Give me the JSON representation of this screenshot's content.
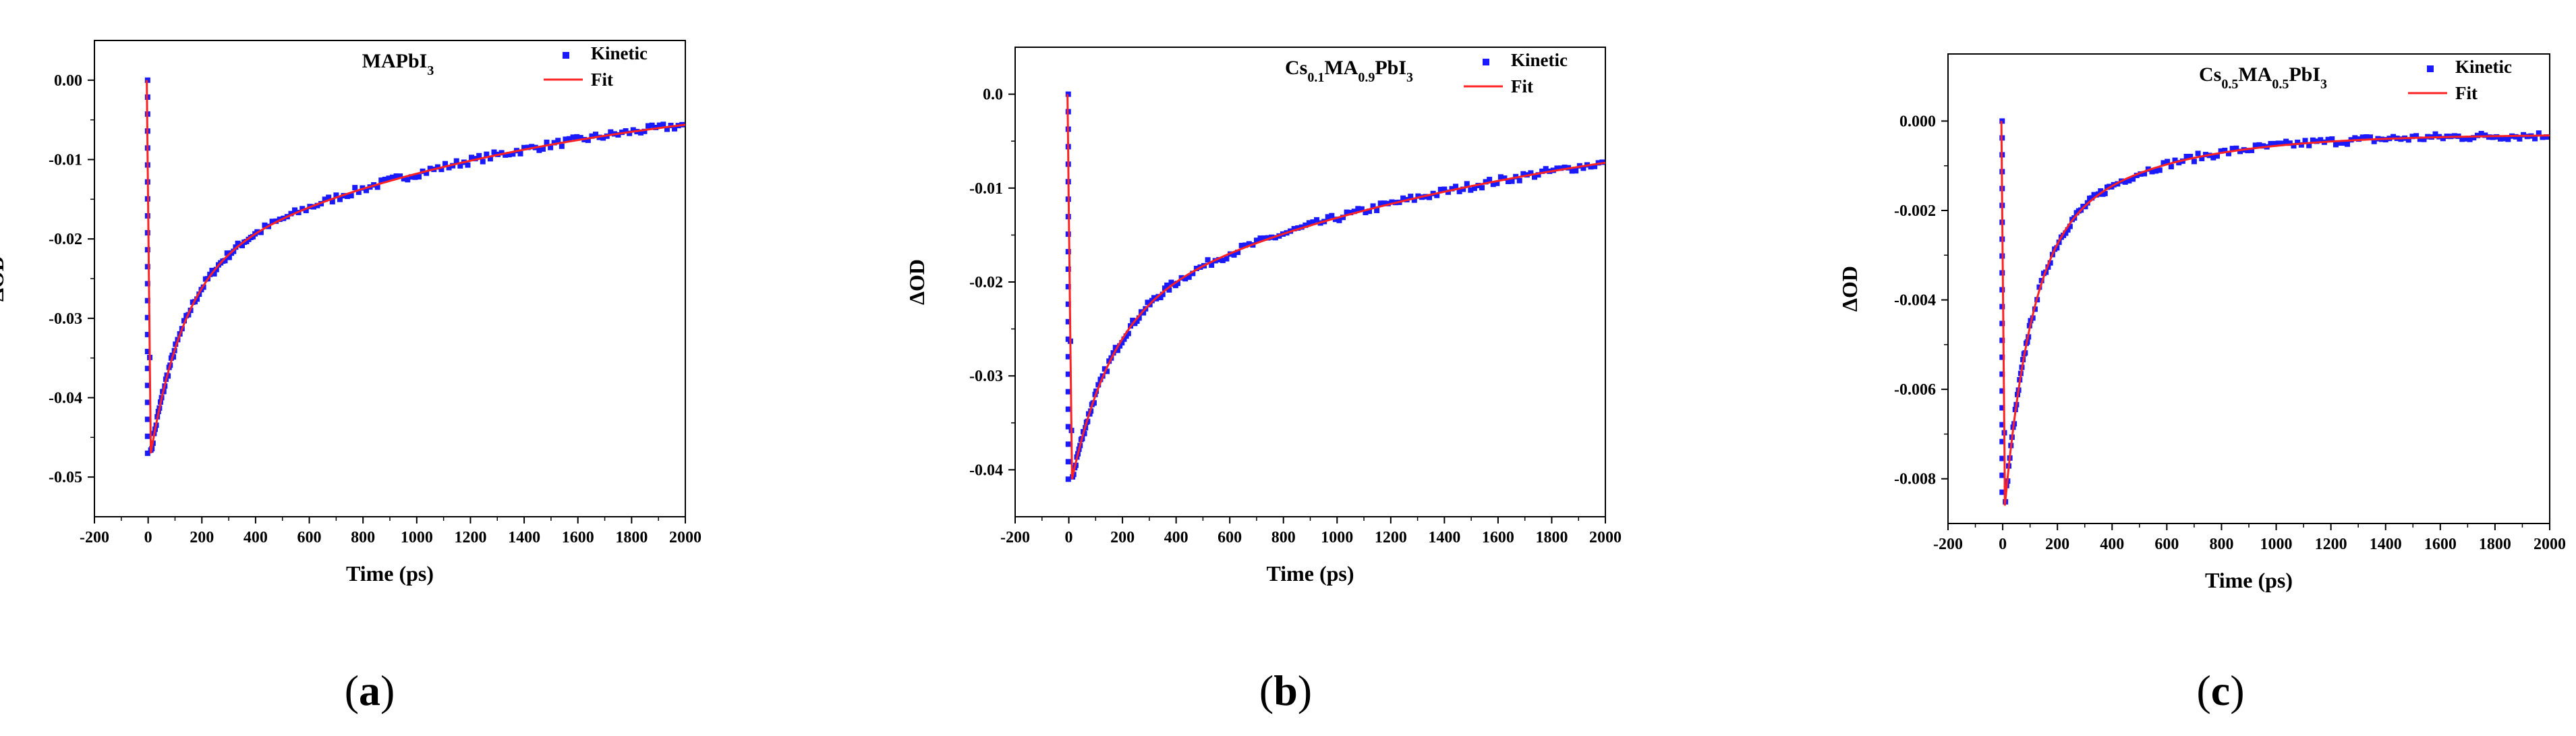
{
  "figure": {
    "caption_open": "(",
    "caption_close": ")"
  },
  "colors": {
    "kinetic": "#1a1aff",
    "fit": "#ff2222",
    "axis": "#000000"
  },
  "chart_data": [
    {
      "type": "scatter",
      "panel_label": "a",
      "title_parts": [
        [
          "MAPbI",
          "n"
        ],
        [
          "3",
          "sub"
        ]
      ],
      "xlabel": "Time (ps)",
      "ylabel": "ΔOD",
      "xlim": [
        -200,
        2000
      ],
      "ylim": [
        -0.055,
        0.005
      ],
      "xticks": [
        -200,
        0,
        200,
        400,
        600,
        800,
        1000,
        1200,
        1400,
        1600,
        1800,
        2000
      ],
      "yticks": [
        0.0,
        -0.01,
        -0.02,
        -0.03,
        -0.04,
        -0.05
      ],
      "ytick_labels": [
        "0.00",
        "-0.01",
        "-0.02",
        "-0.03",
        "-0.04",
        "-0.05"
      ],
      "legend": {
        "kinetic": "Kinetic",
        "fit": "Fit",
        "position": "top-right"
      },
      "model": {
        "t_peak": 10,
        "amplitude_min": -0.047,
        "a1": 0.0225,
        "tau1": 125,
        "a2": 0.0245,
        "tau2": 1350
      },
      "series": [
        {
          "name": "Kinetic",
          "kind": "markers",
          "description": "measured kinetic trace, rises from 0.00 to a minimum of about -0.047 near t = 10 ps then recovers to about -0.006 at 2000 ps"
        },
        {
          "name": "Fit",
          "kind": "line"
        }
      ]
    },
    {
      "type": "scatter",
      "panel_label": "b",
      "title_parts": [
        [
          "Cs",
          "n"
        ],
        [
          "0.1",
          "sub"
        ],
        [
          "MA",
          "n"
        ],
        [
          "0.9",
          "sub"
        ],
        [
          "PbI",
          "n"
        ],
        [
          "3",
          "sub"
        ]
      ],
      "xlabel": "Time (ps)",
      "ylabel": "ΔOD",
      "xlim": [
        -200,
        2000
      ],
      "ylim": [
        -0.045,
        0.005
      ],
      "xticks": [
        -200,
        0,
        200,
        400,
        600,
        800,
        1000,
        1200,
        1400,
        1600,
        1800,
        2000
      ],
      "yticks": [
        0.0,
        -0.01,
        -0.02,
        -0.03,
        -0.04
      ],
      "ytick_labels": [
        "0.0",
        "-0.01",
        "-0.02",
        "-0.03",
        "-0.04"
      ],
      "legend": {
        "kinetic": "Kinetic",
        "fit": "Fit",
        "position": "top-right"
      },
      "model": {
        "t_peak": 12,
        "amplitude_min": -0.041,
        "a1": 0.0175,
        "tau1": 150,
        "a2": 0.0235,
        "tau2": 1700
      },
      "series": [
        {
          "name": "Kinetic",
          "kind": "markers",
          "description": "measured kinetic trace, minimum of about -0.041 near t = 12 ps, recovers to about -0.006 at 2000 ps"
        },
        {
          "name": "Fit",
          "kind": "line"
        }
      ]
    },
    {
      "type": "scatter",
      "panel_label": "c",
      "title_parts": [
        [
          "Cs",
          "n"
        ],
        [
          "0.5",
          "sub"
        ],
        [
          "MA",
          "n"
        ],
        [
          "0.5",
          "sub"
        ],
        [
          "PbI",
          "n"
        ],
        [
          "3",
          "sub"
        ]
      ],
      "xlabel": "Time (ps)",
      "ylabel": "ΔOD",
      "xlim": [
        -200,
        2000
      ],
      "ylim": [
        -0.009,
        0.0015
      ],
      "xticks": [
        -200,
        0,
        200,
        400,
        600,
        800,
        1000,
        1200,
        1400,
        1600,
        1800,
        2000
      ],
      "yticks": [
        0.0,
        -0.002,
        -0.004,
        -0.006,
        -0.008
      ],
      "ytick_labels": [
        "0.000",
        "-0.002",
        "-0.004",
        "-0.006",
        "-0.008"
      ],
      "legend": {
        "kinetic": "Kinetic",
        "fit": "Fit",
        "position": "top-right"
      },
      "model": {
        "t_peak": 8,
        "amplitude_min": -0.0083,
        "a1": 0.0056,
        "tau1": 95,
        "a2": 0.0027,
        "tau2": 420,
        "offset": -0.0003
      },
      "series": [
        {
          "name": "Kinetic",
          "kind": "markers",
          "description": "measured kinetic trace, minimum of about -0.0083 near t = 8 ps, recovers to about -0.0003 by 2000 ps"
        },
        {
          "name": "Fit",
          "kind": "line"
        }
      ]
    }
  ]
}
